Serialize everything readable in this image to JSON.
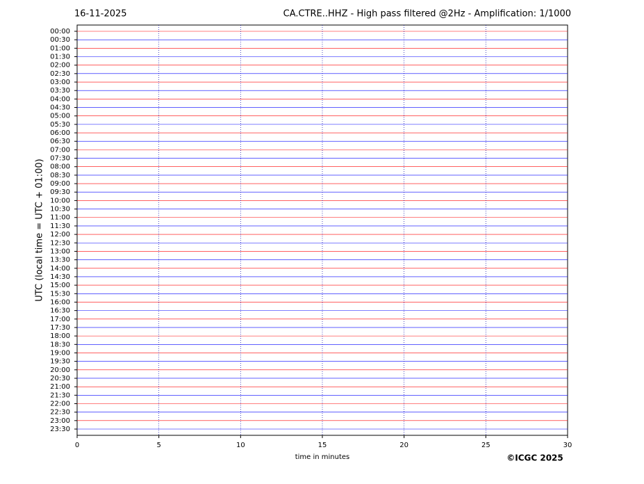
{
  "chart_data": {
    "type": "helicorder",
    "date": "16-11-2025",
    "title": "CA.CTRE..HHZ - High pass filtered @2Hz - Amplification: 1/1000",
    "ylabel": "UTC (local time = UTC + 01:00)",
    "xlabel": "time in minutes",
    "copyright": "©ICGC 2025",
    "categories": [
      "00:00",
      "00:30",
      "01:00",
      "01:30",
      "02:00",
      "02:30",
      "03:00",
      "03:30",
      "04:00",
      "04:30",
      "05:00",
      "05:30",
      "06:00",
      "06:30",
      "07:00",
      "07:30",
      "08:00",
      "08:30",
      "09:00",
      "09:30",
      "10:00",
      "10:30",
      "11:00",
      "11:30",
      "12:00",
      "12:30",
      "13:00",
      "13:30",
      "14:00",
      "14:30",
      "15:00",
      "15:30",
      "16:00",
      "16:30",
      "17:00",
      "17:30",
      "18:00",
      "18:30",
      "19:00",
      "19:30",
      "20:00",
      "20:30",
      "21:00",
      "21:30",
      "22:00",
      "22:30",
      "23:00",
      "23:30"
    ],
    "trace_colors": [
      "#ff0000",
      "#0000ff"
    ],
    "xlim": [
      0,
      30
    ],
    "xticks": [
      0,
      5,
      10,
      15,
      20,
      25,
      30
    ],
    "grid": true
  }
}
